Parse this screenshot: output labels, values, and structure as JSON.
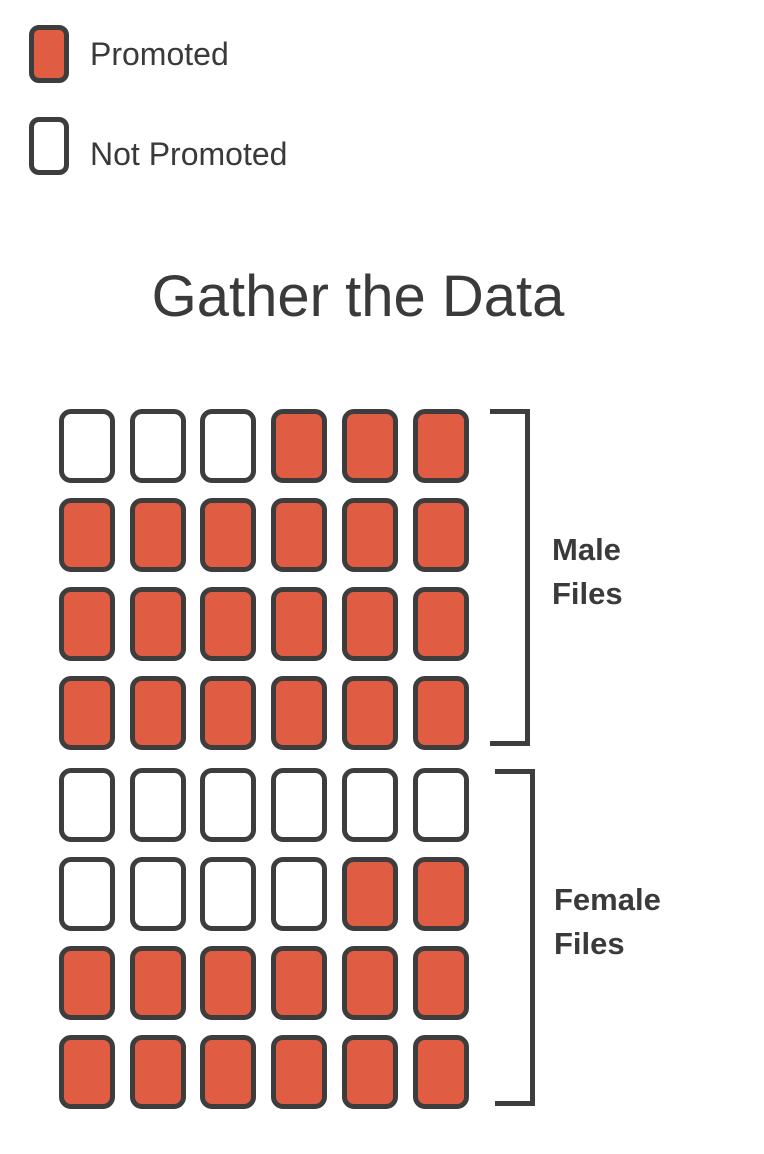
{
  "legend": {
    "items": [
      {
        "label": "Promoted",
        "state": "promoted"
      },
      {
        "label": "Not Promoted",
        "state": "not-promoted"
      }
    ]
  },
  "title": "Gather the Data",
  "colors": {
    "promoted": "#e05c43",
    "not_promoted": "#ffffff",
    "outline": "#3d3d3d",
    "text": "#3a3a3a"
  },
  "groups": [
    {
      "label_lines": [
        "Male",
        "Files"
      ],
      "rows": [
        [
          0,
          0,
          0,
          1,
          1,
          1
        ],
        [
          1,
          1,
          1,
          1,
          1,
          1
        ],
        [
          1,
          1,
          1,
          1,
          1,
          1
        ],
        [
          1,
          1,
          1,
          1,
          1,
          1
        ]
      ]
    },
    {
      "label_lines": [
        "Female",
        "Files"
      ],
      "rows": [
        [
          0,
          0,
          0,
          0,
          0,
          0
        ],
        [
          0,
          0,
          0,
          0,
          1,
          1
        ],
        [
          1,
          1,
          1,
          1,
          1,
          1
        ],
        [
          1,
          1,
          1,
          1,
          1,
          1
        ]
      ]
    }
  ]
}
